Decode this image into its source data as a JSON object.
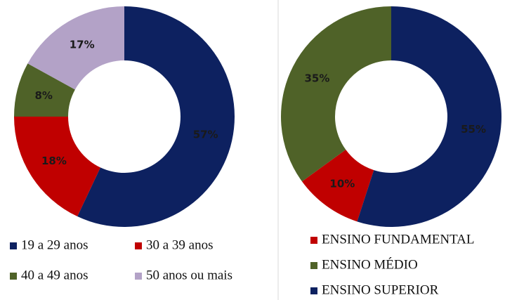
{
  "chart_data": [
    {
      "type": "donut",
      "start_angle": 0,
      "categories": [
        "19 a 29 anos",
        "30 a 39 anos",
        "40 a 49 anos",
        "50 anos ou mais"
      ],
      "values": [
        57,
        18,
        8,
        17
      ],
      "value_labels": [
        "57%",
        "18%",
        "8%",
        "17%"
      ],
      "colors": [
        "#0d2160",
        "#c00000",
        "#4f6228",
        "#b3a2c7"
      ],
      "legend": "bottom"
    },
    {
      "type": "donut",
      "start_angle": 198,
      "categories": [
        "ENSINO FUNDAMENTAL",
        "ENSINO MÉDIO",
        "ENSINO SUPERIOR"
      ],
      "values": [
        10,
        35,
        55
      ],
      "value_labels": [
        "10%",
        "35%",
        "55%"
      ],
      "colors": [
        "#c00000",
        "#4f6228",
        "#0d2160"
      ],
      "legend": "bottom"
    }
  ]
}
